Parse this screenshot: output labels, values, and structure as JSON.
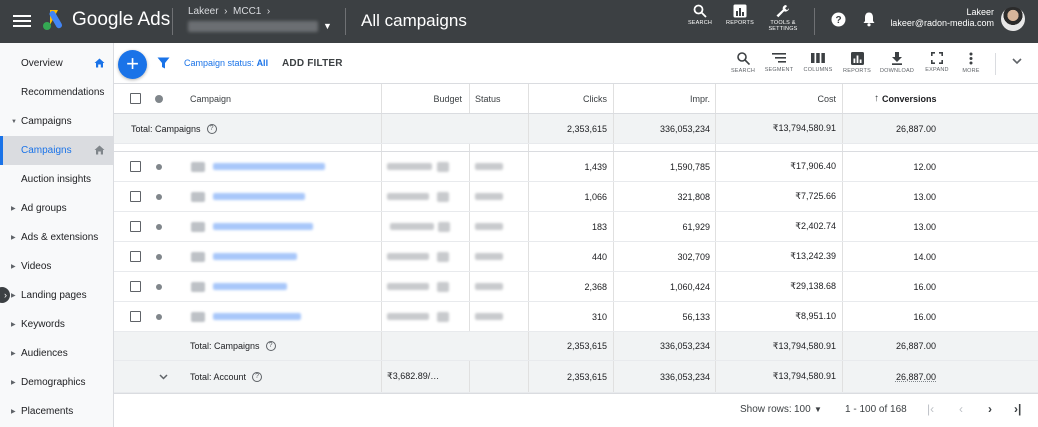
{
  "app": {
    "name": "Google Ads",
    "breadcrumb": [
      "Lakeer",
      "MCC1"
    ],
    "page_title": "All campaigns"
  },
  "topbar": {
    "search_label": "SEARCH",
    "reports_label": "REPORTS",
    "tools_label_1": "TOOLS &",
    "tools_label_2": "SETTINGS",
    "user_name": "Lakeer",
    "user_email": "lakeer@radon-media.com"
  },
  "sidebar": {
    "items": [
      {
        "label": "Overview",
        "icon": "home-icon"
      },
      {
        "label": "Recommendations"
      },
      {
        "label": "Campaigns",
        "expandable": true,
        "expanded": true
      },
      {
        "label": "Campaigns",
        "active": true,
        "icon": "home-icon"
      },
      {
        "label": "Auction insights"
      },
      {
        "label": "Ad groups",
        "expandable": true
      },
      {
        "label": "Ads & extensions",
        "expandable": true
      },
      {
        "label": "Videos",
        "expandable": true
      },
      {
        "label": "Landing pages",
        "expandable": true
      },
      {
        "label": "Keywords",
        "expandable": true
      },
      {
        "label": "Audiences",
        "expandable": true
      },
      {
        "label": "Demographics",
        "expandable": true
      },
      {
        "label": "Placements",
        "expandable": true
      }
    ]
  },
  "filterbar": {
    "filter_prefix": "Campaign status:",
    "filter_value": "All",
    "add_filter": "ADD FILTER",
    "tools": [
      "SEARCH",
      "SEGMENT",
      "COLUMNS",
      "REPORTS",
      "DOWNLOAD",
      "EXPAND",
      "MORE"
    ]
  },
  "table": {
    "headers": {
      "campaign": "Campaign",
      "budget": "Budget",
      "status": "Status",
      "clicks": "Clicks",
      "impr": "Impr.",
      "cost": "Cost",
      "conversions": "Conversions"
    },
    "total_campaigns_top": {
      "label": "Total: Campaigns",
      "clicks": "2,353,615",
      "impr": "336,053,234",
      "cost": "₹13,794,580.91",
      "conversions": "26,887.00"
    },
    "rows": [
      {
        "clicks": "1,439",
        "impr": "1,590,785",
        "cost": "₹17,906.40",
        "conversions": "12.00"
      },
      {
        "clicks": "1,066",
        "impr": "321,808",
        "cost": "₹7,725.66",
        "conversions": "13.00"
      },
      {
        "clicks": "183",
        "impr": "61,929",
        "cost": "₹2,402.74",
        "conversions": "13.00"
      },
      {
        "clicks": "440",
        "impr": "302,709",
        "cost": "₹13,242.39",
        "conversions": "14.00"
      },
      {
        "clicks": "2,368",
        "impr": "1,060,424",
        "cost": "₹29,138.68",
        "conversions": "16.00"
      },
      {
        "clicks": "310",
        "impr": "56,133",
        "cost": "₹8,951.10",
        "conversions": "16.00"
      }
    ],
    "total_campaigns_bottom": {
      "label": "Total: Campaigns",
      "clicks": "2,353,615",
      "impr": "336,053,234",
      "cost": "₹13,794,580.91",
      "conversions": "26,887.00"
    },
    "total_account": {
      "label": "Total: Account",
      "budget": "₹3,682.89/…",
      "clicks": "2,353,615",
      "impr": "336,053,234",
      "cost": "₹13,794,580.91",
      "conversions": "26,887.00"
    }
  },
  "footer": {
    "show_rows_label": "Show rows:",
    "show_rows_value": "100",
    "range": "1 - 100 of 168"
  },
  "colors": {
    "topbar": "#3c4043",
    "accent": "#1a73e8",
    "link_blur": "#a8c7fa"
  }
}
